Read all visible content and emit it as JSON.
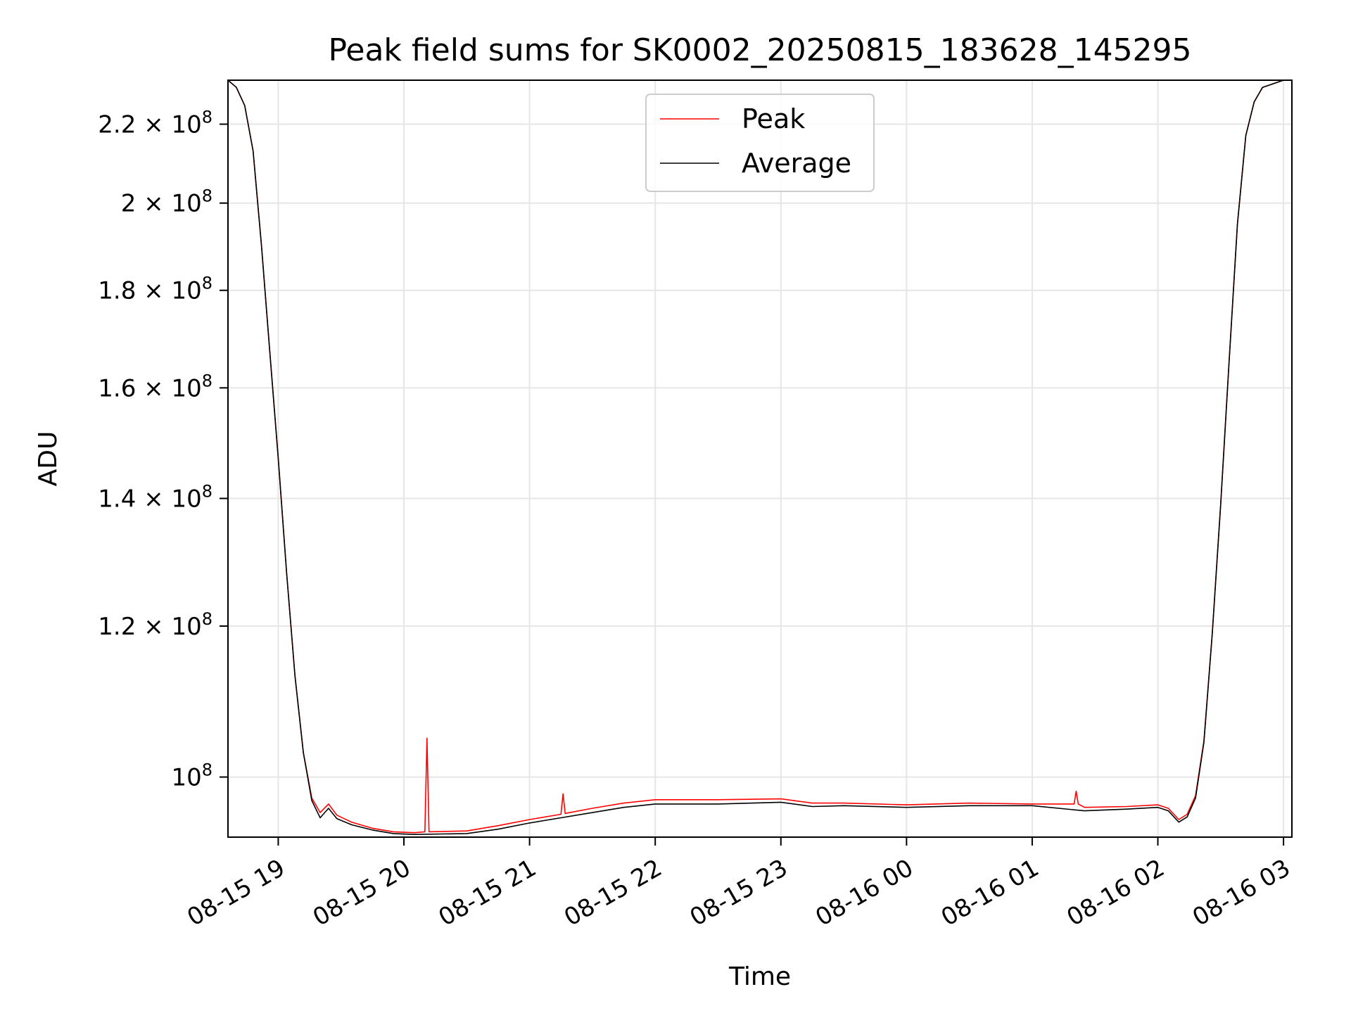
{
  "chart_data": {
    "type": "line",
    "title": "Peak field sums for SK0002_20250815_183628_145295",
    "xlabel": "Time",
    "ylabel": "ADU",
    "yscale": "log",
    "ylim": [
      93000000.0,
      232000000.0
    ],
    "grid": true,
    "legend_position": "top-center",
    "x_tick_labels": [
      "08-15 19",
      "08-15 20",
      "08-15 21",
      "08-15 22",
      "08-15 23",
      "08-16 00",
      "08-16 01",
      "08-16 02",
      "08-16 03"
    ],
    "y_ticks": [
      {
        "value": 100000000,
        "mantissa": "",
        "exp": "8"
      },
      {
        "value": 120000000,
        "mantissa": "1.2",
        "exp": "8"
      },
      {
        "value": 140000000,
        "mantissa": "1.4",
        "exp": "8"
      },
      {
        "value": 160000000,
        "mantissa": "1.6",
        "exp": "8"
      },
      {
        "value": 180000000,
        "mantissa": "1.8",
        "exp": "8"
      },
      {
        "value": 200000000,
        "mantissa": "2",
        "exp": "8"
      },
      {
        "value": 220000000,
        "mantissa": "2.2",
        "exp": "8"
      }
    ],
    "x_range": [
      "2025-08-15T18:36",
      "2025-08-16T03:04"
    ],
    "series": [
      {
        "name": "Peak",
        "color": "#ff0000",
        "points": [
          [
            "2025-08-15T18:36",
            232000000
          ],
          [
            "2025-08-15T18:40",
            230000000
          ],
          [
            "2025-08-15T18:44",
            225000000
          ],
          [
            "2025-08-15T18:48",
            213000000
          ],
          [
            "2025-08-15T18:52",
            190000000
          ],
          [
            "2025-08-15T18:56",
            167000000
          ],
          [
            "2025-08-15T19:00",
            147000000
          ],
          [
            "2025-08-15T19:04",
            128000000
          ],
          [
            "2025-08-15T19:08",
            113000000
          ],
          [
            "2025-08-15T19:12",
            103000000
          ],
          [
            "2025-08-15T19:16",
            97500000
          ],
          [
            "2025-08-15T19:20",
            95800000
          ],
          [
            "2025-08-15T19:24",
            96800000
          ],
          [
            "2025-08-15T19:28",
            95500000
          ],
          [
            "2025-08-15T19:35",
            94700000
          ],
          [
            "2025-08-15T19:45",
            94000000
          ],
          [
            "2025-08-15T19:55",
            93600000
          ],
          [
            "2025-08-15T20:05",
            93500000
          ],
          [
            "2025-08-15T20:10",
            93600000
          ],
          [
            "2025-08-15T20:11",
            104800000
          ],
          [
            "2025-08-15T20:12",
            93600000
          ],
          [
            "2025-08-15T20:30",
            93700000
          ],
          [
            "2025-08-15T20:45",
            94300000
          ],
          [
            "2025-08-15T21:00",
            95000000
          ],
          [
            "2025-08-15T21:15",
            95600000
          ],
          [
            "2025-08-15T21:16",
            98000000
          ],
          [
            "2025-08-15T21:17",
            95700000
          ],
          [
            "2025-08-15T21:30",
            96300000
          ],
          [
            "2025-08-15T21:45",
            96900000
          ],
          [
            "2025-08-15T22:00",
            97300000
          ],
          [
            "2025-08-15T22:30",
            97300000
          ],
          [
            "2025-08-15T23:00",
            97400000
          ],
          [
            "2025-08-15T23:15",
            96900000
          ],
          [
            "2025-08-15T23:30",
            96900000
          ],
          [
            "2025-08-16T00:00",
            96700000
          ],
          [
            "2025-08-16T00:30",
            96900000
          ],
          [
            "2025-08-16T01:00",
            96800000
          ],
          [
            "2025-08-16T01:20",
            96800000
          ],
          [
            "2025-08-16T01:21",
            98300000
          ],
          [
            "2025-08-16T01:22",
            96800000
          ],
          [
            "2025-08-16T01:25",
            96400000
          ],
          [
            "2025-08-16T01:45",
            96500000
          ],
          [
            "2025-08-16T02:00",
            96700000
          ],
          [
            "2025-08-16T02:05",
            96300000
          ],
          [
            "2025-08-16T02:10",
            95000000
          ],
          [
            "2025-08-16T02:14",
            95600000
          ],
          [
            "2025-08-16T02:18",
            97800000
          ],
          [
            "2025-08-16T02:22",
            104500000
          ],
          [
            "2025-08-16T02:26",
            119000000
          ],
          [
            "2025-08-16T02:30",
            139000000
          ],
          [
            "2025-08-16T02:34",
            165000000
          ],
          [
            "2025-08-16T02:38",
            195000000
          ],
          [
            "2025-08-16T02:42",
            217000000
          ],
          [
            "2025-08-16T02:46",
            226000000
          ],
          [
            "2025-08-16T02:50",
            230000000
          ],
          [
            "2025-08-16T03:00",
            232000000
          ],
          [
            "2025-08-16T03:04",
            232000000
          ]
        ]
      },
      {
        "name": "Average",
        "color": "#000000",
        "points": [
          [
            "2025-08-15T18:36",
            232000000
          ],
          [
            "2025-08-15T18:40",
            230000000
          ],
          [
            "2025-08-15T18:44",
            225000000
          ],
          [
            "2025-08-15T18:48",
            213000000
          ],
          [
            "2025-08-15T18:52",
            190000000
          ],
          [
            "2025-08-15T18:56",
            167000000
          ],
          [
            "2025-08-15T19:00",
            147000000
          ],
          [
            "2025-08-15T19:04",
            128000000
          ],
          [
            "2025-08-15T19:08",
            113000000
          ],
          [
            "2025-08-15T19:12",
            103000000
          ],
          [
            "2025-08-15T19:16",
            97200000
          ],
          [
            "2025-08-15T19:20",
            95200000
          ],
          [
            "2025-08-15T19:24",
            96300000
          ],
          [
            "2025-08-15T19:28",
            95100000
          ],
          [
            "2025-08-15T19:35",
            94400000
          ],
          [
            "2025-08-15T19:45",
            93800000
          ],
          [
            "2025-08-15T19:55",
            93400000
          ],
          [
            "2025-08-15T20:05",
            93300000
          ],
          [
            "2025-08-15T20:30",
            93400000
          ],
          [
            "2025-08-15T20:45",
            93900000
          ],
          [
            "2025-08-15T21:00",
            94600000
          ],
          [
            "2025-08-15T21:15",
            95200000
          ],
          [
            "2025-08-15T21:30",
            95800000
          ],
          [
            "2025-08-15T21:45",
            96400000
          ],
          [
            "2025-08-15T22:00",
            96800000
          ],
          [
            "2025-08-15T22:30",
            96800000
          ],
          [
            "2025-08-15T23:00",
            97000000
          ],
          [
            "2025-08-15T23:15",
            96500000
          ],
          [
            "2025-08-15T23:30",
            96600000
          ],
          [
            "2025-08-16T00:00",
            96400000
          ],
          [
            "2025-08-16T00:30",
            96600000
          ],
          [
            "2025-08-16T01:00",
            96600000
          ],
          [
            "2025-08-16T01:25",
            96000000
          ],
          [
            "2025-08-16T01:45",
            96200000
          ],
          [
            "2025-08-16T02:00",
            96400000
          ],
          [
            "2025-08-16T02:05",
            96000000
          ],
          [
            "2025-08-16T02:10",
            94700000
          ],
          [
            "2025-08-16T02:14",
            95300000
          ],
          [
            "2025-08-16T02:18",
            97500000
          ],
          [
            "2025-08-16T02:22",
            104300000
          ],
          [
            "2025-08-16T02:26",
            119000000
          ],
          [
            "2025-08-16T02:30",
            139000000
          ],
          [
            "2025-08-16T02:34",
            165000000
          ],
          [
            "2025-08-16T02:38",
            195000000
          ],
          [
            "2025-08-16T02:42",
            217000000
          ],
          [
            "2025-08-16T02:46",
            226000000
          ],
          [
            "2025-08-16T02:50",
            230000000
          ],
          [
            "2025-08-16T03:00",
            232000000
          ],
          [
            "2025-08-16T03:04",
            232000000
          ]
        ]
      }
    ]
  }
}
